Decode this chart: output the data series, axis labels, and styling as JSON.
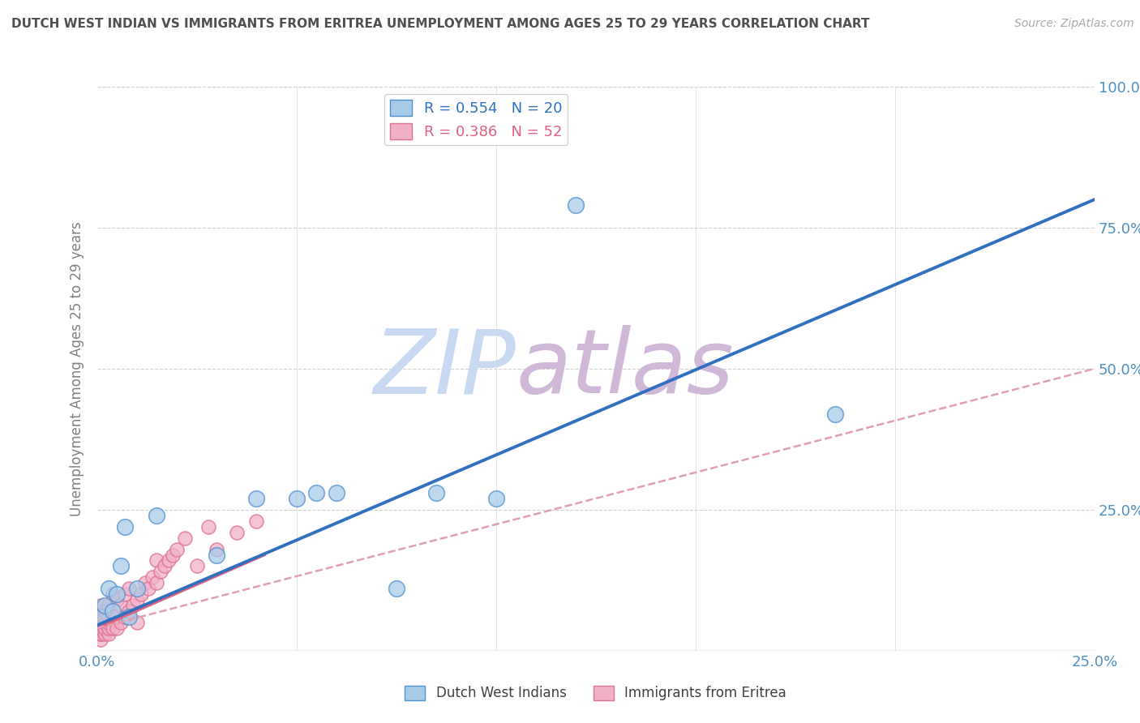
{
  "title": "DUTCH WEST INDIAN VS IMMIGRANTS FROM ERITREA UNEMPLOYMENT AMONG AGES 25 TO 29 YEARS CORRELATION CHART",
  "source": "Source: ZipAtlas.com",
  "ylabel": "Unemployment Among Ages 25 to 29 years",
  "xlim": [
    0.0,
    0.25
  ],
  "ylim": [
    0.0,
    1.0
  ],
  "xticks": [
    0.0,
    0.05,
    0.1,
    0.15,
    0.2,
    0.25
  ],
  "xtick_labels": [
    "0.0%",
    "",
    "",
    "",
    "",
    "25.0%"
  ],
  "yticks": [
    0.0,
    0.25,
    0.5,
    0.75,
    1.0
  ],
  "ytick_labels": [
    "",
    "25.0%",
    "50.0%",
    "75.0%",
    "100.0%"
  ],
  "blue_R": 0.554,
  "blue_N": 20,
  "pink_R": 0.386,
  "pink_N": 52,
  "blue_color": "#a8cce8",
  "pink_color": "#f0b0c8",
  "blue_edge_color": "#5090d0",
  "pink_edge_color": "#e07090",
  "blue_line_color": "#3070c0",
  "pink_line_color": "#e06080",
  "pink_dash_color": "#e0a0b0",
  "watermark_zip": "ZIP",
  "watermark_atlas": "atlas",
  "watermark_color_zip": "#c8d8f0",
  "watermark_color_atlas": "#d0b8d8",
  "background_color": "#ffffff",
  "grid_color": "#d0d0d0",
  "title_color": "#505050",
  "axis_label_color": "#808080",
  "tick_color": "#5090c0",
  "blue_x": [
    0.001,
    0.002,
    0.003,
    0.004,
    0.005,
    0.006,
    0.007,
    0.008,
    0.01,
    0.015,
    0.03,
    0.04,
    0.05,
    0.055,
    0.06,
    0.075,
    0.085,
    0.1,
    0.12,
    0.185
  ],
  "blue_y": [
    0.06,
    0.08,
    0.11,
    0.07,
    0.1,
    0.15,
    0.22,
    0.06,
    0.11,
    0.24,
    0.17,
    0.27,
    0.27,
    0.28,
    0.28,
    0.11,
    0.28,
    0.27,
    0.79,
    0.42
  ],
  "pink_x": [
    0.001,
    0.001,
    0.001,
    0.001,
    0.001,
    0.001,
    0.001,
    0.001,
    0.001,
    0.001,
    0.002,
    0.002,
    0.002,
    0.002,
    0.002,
    0.003,
    0.003,
    0.003,
    0.003,
    0.003,
    0.004,
    0.004,
    0.004,
    0.005,
    0.005,
    0.005,
    0.006,
    0.006,
    0.007,
    0.007,
    0.008,
    0.008,
    0.009,
    0.01,
    0.01,
    0.011,
    0.012,
    0.013,
    0.014,
    0.015,
    0.015,
    0.016,
    0.017,
    0.018,
    0.019,
    0.02,
    0.022,
    0.025,
    0.028,
    0.03,
    0.035,
    0.04
  ],
  "pink_y": [
    0.02,
    0.03,
    0.03,
    0.04,
    0.04,
    0.05,
    0.05,
    0.06,
    0.07,
    0.08,
    0.03,
    0.04,
    0.05,
    0.06,
    0.07,
    0.03,
    0.04,
    0.05,
    0.06,
    0.08,
    0.04,
    0.06,
    0.1,
    0.04,
    0.06,
    0.09,
    0.05,
    0.08,
    0.06,
    0.1,
    0.07,
    0.11,
    0.08,
    0.05,
    0.09,
    0.1,
    0.12,
    0.11,
    0.13,
    0.12,
    0.16,
    0.14,
    0.15,
    0.16,
    0.17,
    0.18,
    0.2,
    0.15,
    0.22,
    0.18,
    0.21,
    0.23
  ],
  "blue_scatter_size": 200,
  "pink_scatter_size": 150,
  "blue_line_x": [
    0.0,
    0.25
  ],
  "blue_line_y": [
    0.045,
    0.8
  ],
  "pink_solid_line_x": [
    0.0,
    0.042
  ],
  "pink_solid_line_y": [
    0.04,
    0.17
  ],
  "pink_dash_line_x": [
    0.0,
    0.25
  ],
  "pink_dash_line_y": [
    0.04,
    0.5
  ]
}
